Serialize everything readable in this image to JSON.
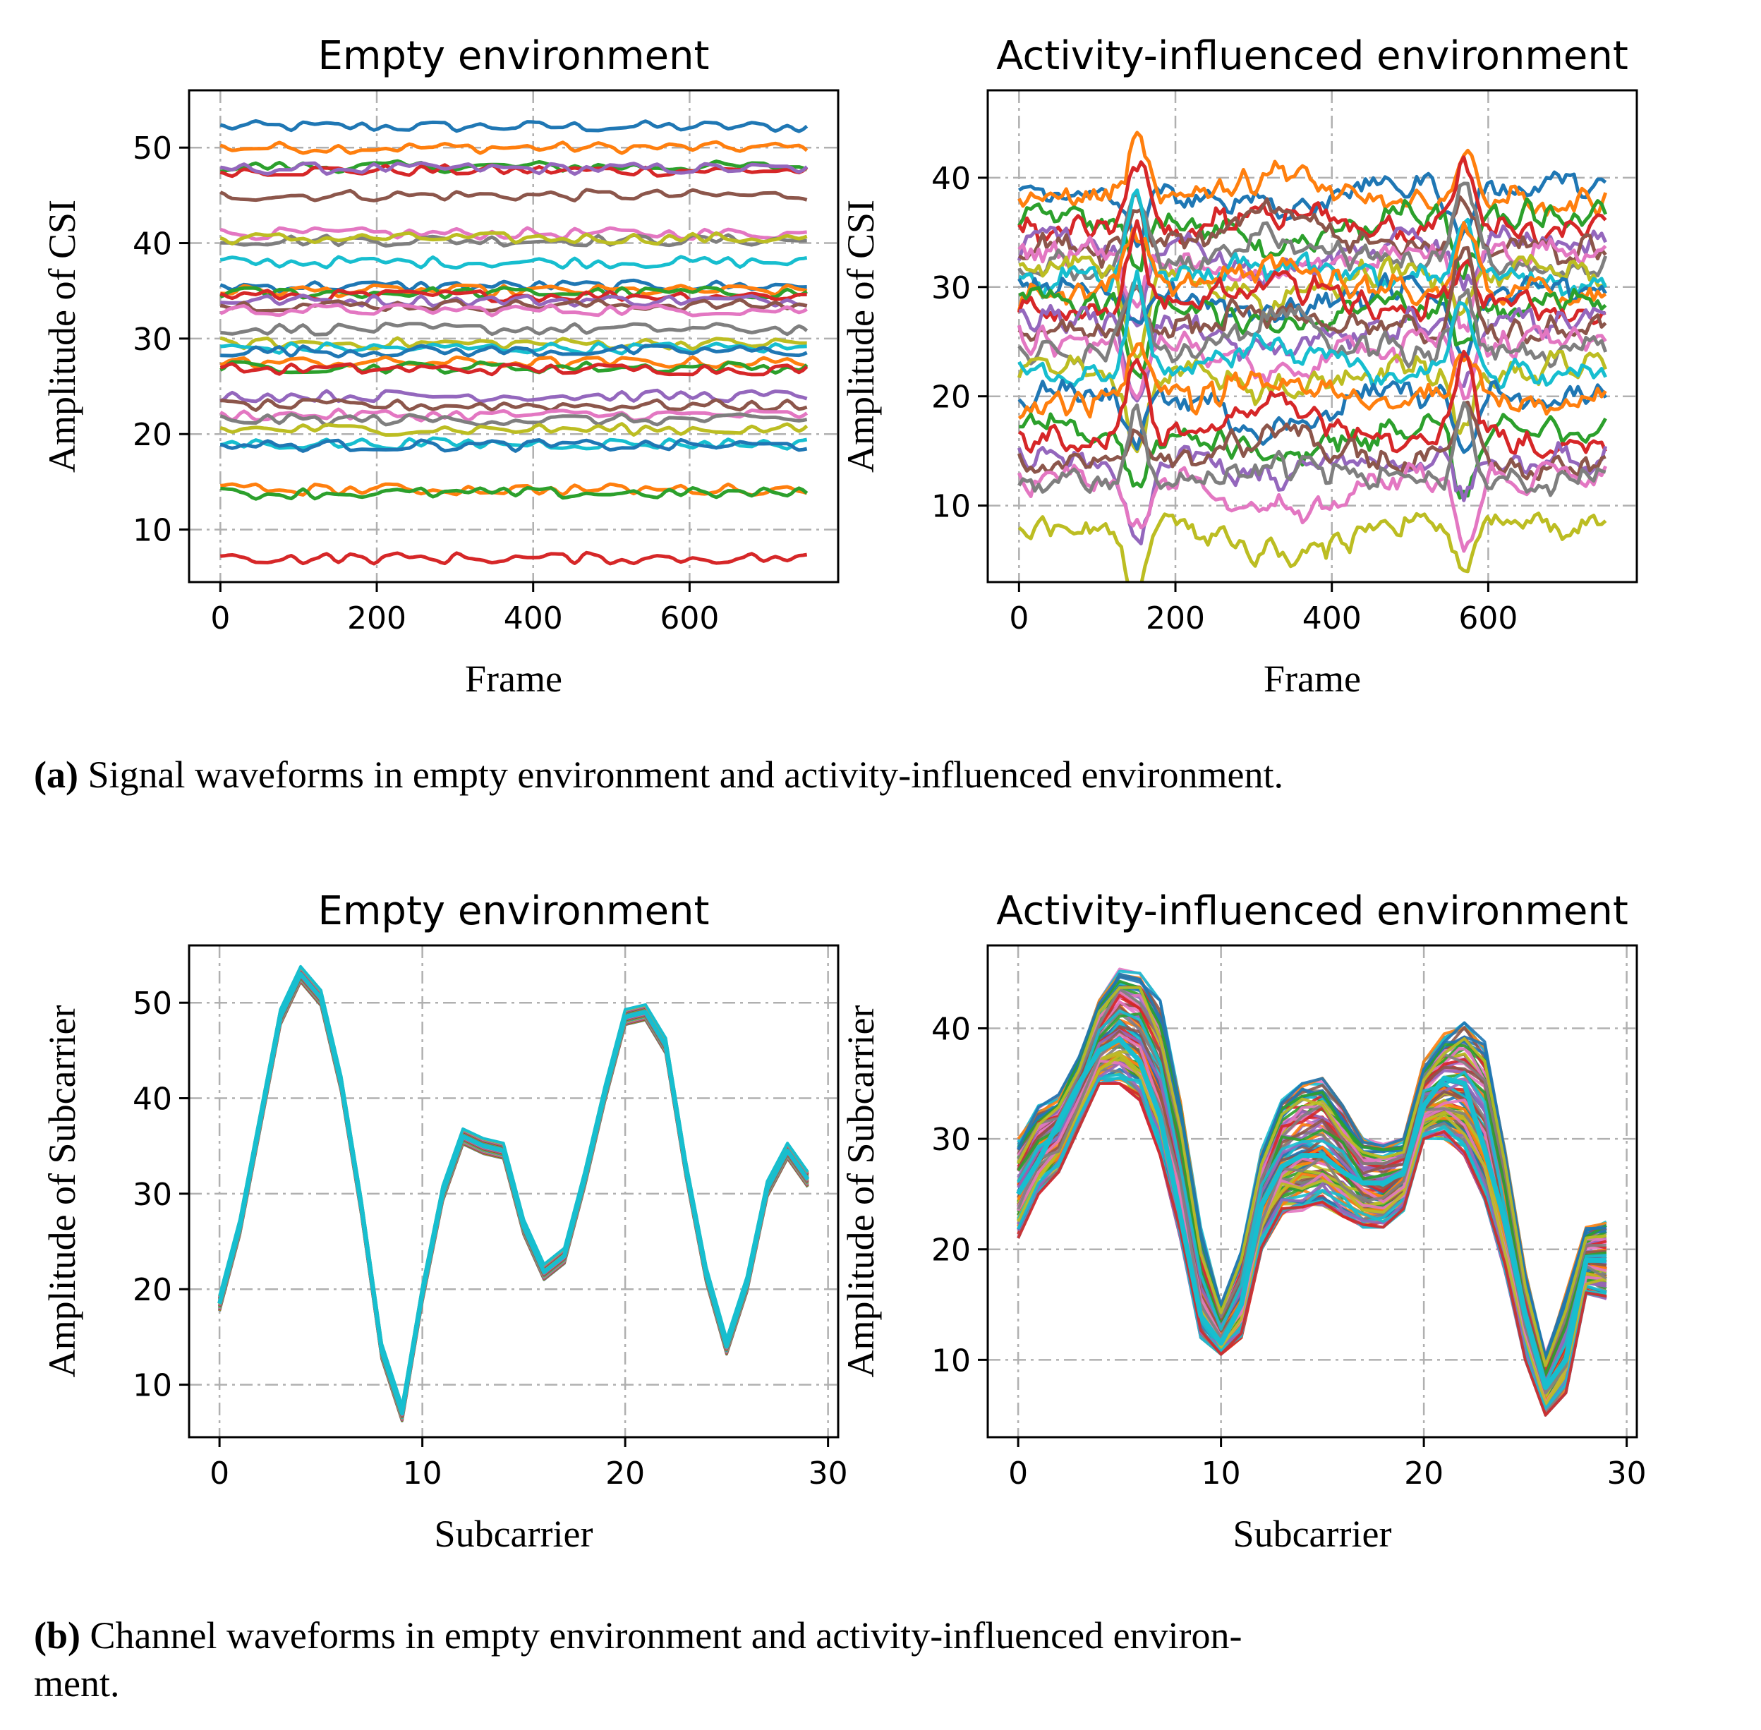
{
  "colors": [
    "#1f77b4",
    "#ff7f0e",
    "#2ca02c",
    "#d62728",
    "#9467bd",
    "#8c564b",
    "#e377c2",
    "#7f7f7f",
    "#bcbd22",
    "#17becf"
  ],
  "captions": {
    "a_tag": "(a)",
    "a_text": "Signal waveforms in empty environment and activity-influenced environment.",
    "b_tag": "(b)",
    "b_text_1": "Channel waveforms in empty environment and activity-influenced environ-",
    "b_text_2": "ment."
  },
  "chart_data": [
    {
      "id": "a1",
      "type": "line",
      "title": "Empty environment",
      "xlabel": "Frame",
      "ylabel": "Amplitude of CSI",
      "xlim": [
        -40,
        790
      ],
      "ylim": [
        4.5,
        56
      ],
      "xticks": [
        0,
        200,
        400,
        600
      ],
      "yticks": [
        10,
        20,
        30,
        40,
        50
      ],
      "grid": true,
      "x_range": [
        0,
        750
      ],
      "series_baselines": [
        52.2,
        50.0,
        48.0,
        47.6,
        47.8,
        45.0,
        41.0,
        40.3,
        40.5,
        38.0,
        35.5,
        35.0,
        34.8,
        34.5,
        34.0,
        33.5,
        33.0,
        31.0,
        29.5,
        29.0,
        28.7,
        27.5,
        27.0,
        26.8,
        24.0,
        23.0,
        22.0,
        21.5,
        20.5,
        19.0,
        18.8,
        14.2,
        13.8,
        7.0
      ],
      "noise": 0.6
    },
    {
      "id": "a2",
      "type": "line",
      "title": "Activity-influenced environment",
      "xlabel": "Frame",
      "ylabel": "Amplitude of CSI",
      "xlim": [
        -40,
        790
      ],
      "ylim": [
        3,
        48
      ],
      "xticks": [
        0,
        200,
        400,
        600
      ],
      "yticks": [
        10,
        20,
        30,
        40
      ],
      "grid": true,
      "x_range": [
        0,
        750
      ],
      "series_baselines": [
        39.0,
        38.0,
        36.5,
        35.0,
        34.0,
        33.5,
        33.0,
        32.0,
        31.5,
        30.5,
        30.0,
        29.5,
        28.5,
        28.0,
        27.0,
        26.0,
        25.0,
        24.0,
        22.5,
        22.0,
        20.0,
        19.5,
        17.0,
        16.0,
        14.5,
        14.0,
        12.5,
        12.0,
        8.0
      ],
      "noise": 1.2
    },
    {
      "id": "b1",
      "type": "line",
      "title": "Empty environment",
      "xlabel": "Subcarrier",
      "ylabel": "Amplitude of Subcarrier",
      "xlim": [
        -1.5,
        30.5
      ],
      "ylim": [
        4.5,
        56
      ],
      "xticks": [
        0,
        10,
        20,
        30
      ],
      "yticks": [
        10,
        20,
        30,
        40,
        50
      ],
      "grid": true,
      "x": [
        0,
        1,
        2,
        3,
        4,
        5,
        6,
        7,
        8,
        9,
        10,
        11,
        12,
        13,
        14,
        15,
        16,
        17,
        18,
        19,
        20,
        21,
        22,
        23,
        24,
        25,
        26,
        27,
        28,
        29
      ],
      "profile": [
        18.5,
        26.5,
        37.5,
        48.5,
        53.0,
        50.5,
        41.5,
        28.5,
        13.5,
        7.0,
        19.5,
        30.0,
        36.0,
        35.0,
        34.5,
        26.5,
        21.8,
        23.5,
        31.5,
        40.5,
        48.5,
        49.0,
        45.5,
        32.5,
        21.5,
        14.0,
        20.5,
        30.5,
        34.5,
        31.5
      ]
    },
    {
      "id": "b2",
      "type": "line",
      "title": "Activity-influenced environment",
      "xlabel": "Subcarrier",
      "ylabel": "Amplitude of Subcarrier",
      "xlim": [
        -1.5,
        30.5
      ],
      "ylim": [
        3,
        47.5
      ],
      "xticks": [
        0,
        10,
        20,
        30
      ],
      "yticks": [
        10,
        20,
        30,
        40
      ],
      "grid": true,
      "x": [
        0,
        1,
        2,
        3,
        4,
        5,
        6,
        7,
        8,
        9,
        10,
        11,
        12,
        13,
        14,
        15,
        16,
        17,
        18,
        19,
        20,
        21,
        22,
        23,
        24,
        25,
        26,
        27,
        28,
        29
      ],
      "profile_low": [
        21.0,
        25.0,
        27.0,
        31.0,
        35.0,
        35.0,
        33.5,
        28.5,
        21.0,
        12.0,
        10.5,
        12.0,
        20.0,
        23.0,
        23.5,
        24.0,
        23.0,
        22.0,
        22.0,
        23.5,
        30.0,
        30.0,
        28.5,
        24.5,
        18.0,
        10.0,
        5.0,
        7.0,
        16.0,
        15.5
      ],
      "profile_high": [
        30.0,
        33.0,
        34.0,
        37.5,
        42.5,
        45.5,
        45.0,
        42.5,
        33.5,
        22.0,
        15.0,
        20.0,
        29.0,
        33.5,
        35.0,
        35.5,
        33.0,
        30.0,
        29.5,
        30.0,
        37.0,
        39.5,
        40.5,
        39.0,
        29.0,
        18.0,
        10.5,
        16.0,
        22.0,
        22.5
      ],
      "highlight": [
        25.0,
        28.0,
        31.5,
        35.0,
        38.0,
        39.0,
        37.0,
        32.0,
        23.0,
        14.0,
        11.5,
        15.0,
        24.0,
        27.5,
        28.5,
        28.5,
        27.0,
        26.0,
        26.0,
        27.0,
        33.0,
        35.5,
        35.0,
        29.0,
        22.5,
        14.0,
        7.5,
        10.0,
        19.0,
        19.0
      ]
    }
  ]
}
